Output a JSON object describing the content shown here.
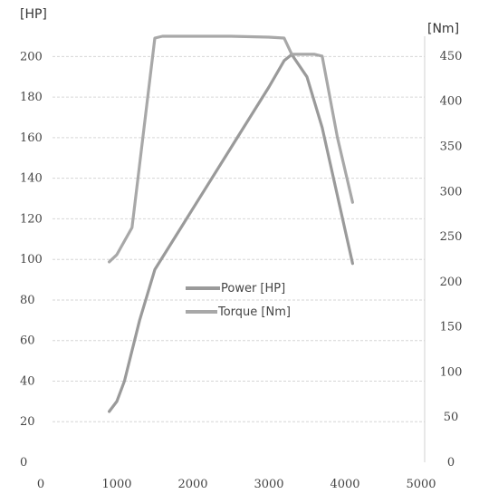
{
  "chart_data": {
    "type": "line",
    "y_left_unit": "[HP]",
    "y_right_unit": "[Nm]",
    "x_ticks": [
      "0",
      "1000",
      "2000",
      "3000",
      "4000",
      "5000"
    ],
    "y_left_ticks": [
      "0",
      "20",
      "40",
      "60",
      "80",
      "100",
      "120",
      "140",
      "160",
      "180",
      "200"
    ],
    "y_right_ticks": [
      "0",
      "50",
      "100",
      "150",
      "200",
      "250",
      "300",
      "350",
      "400",
      "450"
    ],
    "xlim": [
      0,
      5000
    ],
    "ylim_left": [
      0,
      210
    ],
    "ylim_right": [
      0,
      472
    ],
    "grid": true,
    "legend_position": "center",
    "series": [
      {
        "name": "Power [HP]",
        "axis": "left",
        "color": "#9a9a9a",
        "x": [
          900,
          1000,
          1100,
          1200,
          1300,
          1500,
          2000,
          2500,
          3000,
          3200,
          3300,
          3500,
          3700,
          4100
        ],
        "y": [
          25,
          30,
          40,
          55,
          70,
          95,
          125,
          155,
          185,
          198,
          201,
          190,
          165,
          98
        ]
      },
      {
        "name": "Torque [Nm]",
        "axis": "right",
        "color": "#a8a8a8",
        "x": [
          900,
          1000,
          1100,
          1200,
          1300,
          1400,
          1500,
          1600,
          2000,
          2500,
          3000,
          3200,
          3300,
          3600,
          3700,
          3900,
          4100
        ],
        "y": [
          222,
          230,
          245,
          260,
          330,
          400,
          470,
          472,
          472,
          472,
          471,
          470,
          452,
          452,
          450,
          360,
          288
        ]
      }
    ]
  }
}
